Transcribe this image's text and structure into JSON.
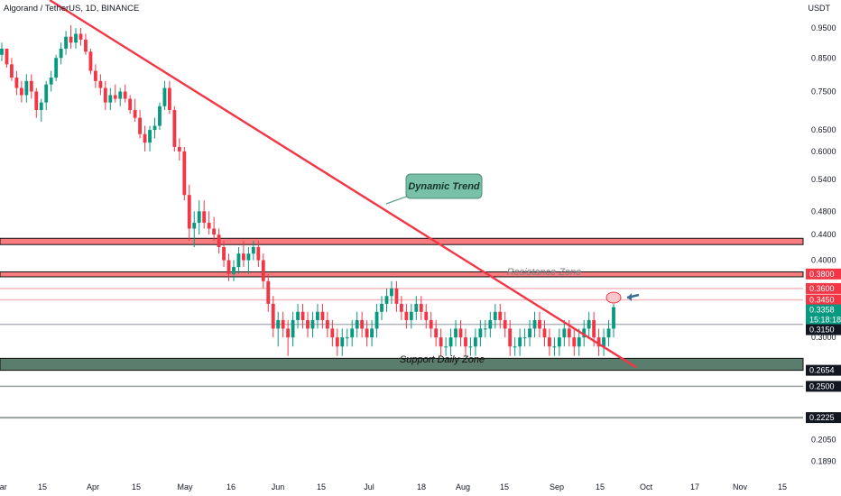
{
  "header": {
    "symbol_title": "Algorand / TetherUS, 1D, BINANCE",
    "unit": "USDT"
  },
  "chart_data": {
    "type": "candlestick",
    "title": "Algorand / TetherUS, 1D, BINANCE",
    "scale": "log",
    "y_axis_ticks": [
      0.95,
      0.85,
      0.75,
      0.65,
      0.6,
      0.54,
      0.48,
      0.44,
      0.4,
      0.3,
      0.2654,
      0.25,
      0.2225,
      0.205,
      0.189
    ],
    "y_tick_labels": [
      "0.9500",
      "0.8500",
      "0.7500",
      "0.6500",
      "0.6000",
      "0.5400",
      "0.4800",
      "0.4400",
      "0.4000",
      "0.3000",
      "0.2654",
      "0.2500",
      "0.2225",
      "0.2050",
      "0.1890"
    ],
    "x_axis_ticks": [
      "Mar",
      "15",
      "Apr",
      "15",
      "May",
      "16",
      "Jun",
      "15",
      "Jul",
      "18",
      "Aug",
      "15",
      "Sep",
      "15",
      "Oct",
      "17",
      "Nov",
      "15"
    ],
    "price_badges": [
      {
        "value": "0.3800",
        "color": "#f23645"
      },
      {
        "value": "0.3600",
        "color": "#f23645"
      },
      {
        "value": "0.3450",
        "color": "#f23645"
      },
      {
        "value": "0.3358",
        "color": "#089981"
      },
      {
        "value": "15:18:18",
        "color": "#089981"
      },
      {
        "value": "0.3150",
        "color": "#131722"
      },
      {
        "value": "0.2654",
        "color": "#131722"
      },
      {
        "value": "0.2500",
        "color": "#131722"
      },
      {
        "value": "0.2225",
        "color": "#131722"
      }
    ],
    "annotations": {
      "dynamic_trend": "Dynamic Trend",
      "resistance_zone": "Resistance Zone",
      "support_zone": "Support Daily Zone"
    },
    "zones": [
      {
        "name": "top-resistance",
        "from": 0.424,
        "to": 0.434,
        "color": "#f77c80"
      },
      {
        "name": "resistance-zone",
        "from": 0.376,
        "to": 0.383,
        "color": "#f77c80"
      },
      {
        "name": "support-daily-zone",
        "from": 0.2654,
        "to": 0.2775,
        "color": "#5b7d6e"
      }
    ],
    "horizontal_lines": [
      0.36,
      0.345,
      0.315,
      0.25,
      0.2225
    ],
    "trendline": {
      "start": {
        "x": "Mar 1",
        "y": 1.1
      },
      "end": {
        "x": "Sep 25",
        "y": 0.272
      }
    },
    "current_price": 0.3358,
    "ohlc": [
      [
        0.86,
        0.9,
        0.84,
        0.88
      ],
      [
        0.88,
        0.88,
        0.82,
        0.83
      ],
      [
        0.83,
        0.85,
        0.78,
        0.79
      ],
      [
        0.79,
        0.81,
        0.74,
        0.76
      ],
      [
        0.76,
        0.78,
        0.72,
        0.74
      ],
      [
        0.74,
        0.8,
        0.72,
        0.78
      ],
      [
        0.78,
        0.8,
        0.73,
        0.75
      ],
      [
        0.75,
        0.76,
        0.68,
        0.7
      ],
      [
        0.7,
        0.73,
        0.67,
        0.72
      ],
      [
        0.72,
        0.78,
        0.7,
        0.77
      ],
      [
        0.77,
        0.81,
        0.75,
        0.79
      ],
      [
        0.79,
        0.86,
        0.78,
        0.85
      ],
      [
        0.85,
        0.9,
        0.83,
        0.88
      ],
      [
        0.88,
        0.94,
        0.86,
        0.92
      ],
      [
        0.92,
        0.96,
        0.88,
        0.9
      ],
      [
        0.9,
        0.95,
        0.88,
        0.93
      ],
      [
        0.93,
        0.95,
        0.89,
        0.91
      ],
      [
        0.91,
        0.93,
        0.86,
        0.87
      ],
      [
        0.87,
        0.88,
        0.8,
        0.81
      ],
      [
        0.81,
        0.83,
        0.76,
        0.78
      ],
      [
        0.78,
        0.8,
        0.74,
        0.76
      ],
      [
        0.76,
        0.78,
        0.7,
        0.72
      ],
      [
        0.72,
        0.76,
        0.7,
        0.74
      ],
      [
        0.74,
        0.77,
        0.72,
        0.73
      ],
      [
        0.73,
        0.76,
        0.71,
        0.75
      ],
      [
        0.75,
        0.77,
        0.72,
        0.73
      ],
      [
        0.73,
        0.74,
        0.69,
        0.7
      ],
      [
        0.7,
        0.73,
        0.67,
        0.68
      ],
      [
        0.68,
        0.7,
        0.63,
        0.64
      ],
      [
        0.64,
        0.66,
        0.6,
        0.62
      ],
      [
        0.62,
        0.66,
        0.6,
        0.65
      ],
      [
        0.65,
        0.68,
        0.63,
        0.66
      ],
      [
        0.66,
        0.72,
        0.65,
        0.71
      ],
      [
        0.71,
        0.78,
        0.7,
        0.76
      ],
      [
        0.76,
        0.78,
        0.69,
        0.7
      ],
      [
        0.7,
        0.71,
        0.6,
        0.61
      ],
      [
        0.61,
        0.63,
        0.58,
        0.6
      ],
      [
        0.6,
        0.61,
        0.5,
        0.51
      ],
      [
        0.51,
        0.53,
        0.43,
        0.45
      ],
      [
        0.45,
        0.48,
        0.42,
        0.46
      ],
      [
        0.46,
        0.5,
        0.44,
        0.48
      ],
      [
        0.48,
        0.5,
        0.45,
        0.46
      ],
      [
        0.46,
        0.48,
        0.44,
        0.45
      ],
      [
        0.45,
        0.47,
        0.43,
        0.44
      ],
      [
        0.44,
        0.45,
        0.41,
        0.42
      ],
      [
        0.42,
        0.43,
        0.39,
        0.4
      ],
      [
        0.4,
        0.41,
        0.37,
        0.38
      ],
      [
        0.38,
        0.4,
        0.37,
        0.39
      ],
      [
        0.39,
        0.42,
        0.38,
        0.41
      ],
      [
        0.41,
        0.43,
        0.39,
        0.4
      ],
      [
        0.4,
        0.42,
        0.38,
        0.41
      ],
      [
        0.41,
        0.43,
        0.4,
        0.42
      ],
      [
        0.42,
        0.43,
        0.39,
        0.4
      ],
      [
        0.4,
        0.41,
        0.36,
        0.37
      ],
      [
        0.37,
        0.38,
        0.33,
        0.34
      ],
      [
        0.34,
        0.35,
        0.3,
        0.31
      ],
      [
        0.31,
        0.33,
        0.29,
        0.32
      ],
      [
        0.32,
        0.33,
        0.3,
        0.31
      ],
      [
        0.31,
        0.32,
        0.28,
        0.3
      ],
      [
        0.3,
        0.33,
        0.29,
        0.32
      ],
      [
        0.32,
        0.34,
        0.31,
        0.33
      ],
      [
        0.33,
        0.34,
        0.31,
        0.32
      ],
      [
        0.32,
        0.33,
        0.3,
        0.31
      ],
      [
        0.31,
        0.33,
        0.3,
        0.32
      ],
      [
        0.32,
        0.34,
        0.31,
        0.33
      ],
      [
        0.33,
        0.34,
        0.31,
        0.32
      ],
      [
        0.32,
        0.33,
        0.3,
        0.31
      ],
      [
        0.31,
        0.32,
        0.29,
        0.3
      ],
      [
        0.3,
        0.31,
        0.28,
        0.29
      ],
      [
        0.29,
        0.31,
        0.28,
        0.3
      ],
      [
        0.3,
        0.31,
        0.29,
        0.3
      ],
      [
        0.3,
        0.32,
        0.29,
        0.31
      ],
      [
        0.31,
        0.33,
        0.3,
        0.32
      ],
      [
        0.32,
        0.33,
        0.3,
        0.31
      ],
      [
        0.31,
        0.32,
        0.29,
        0.3
      ],
      [
        0.3,
        0.32,
        0.29,
        0.31
      ],
      [
        0.31,
        0.34,
        0.3,
        0.33
      ],
      [
        0.33,
        0.35,
        0.32,
        0.34
      ],
      [
        0.34,
        0.36,
        0.33,
        0.35
      ],
      [
        0.35,
        0.37,
        0.34,
        0.36
      ],
      [
        0.36,
        0.37,
        0.33,
        0.34
      ],
      [
        0.34,
        0.35,
        0.32,
        0.33
      ],
      [
        0.33,
        0.34,
        0.31,
        0.32
      ],
      [
        0.32,
        0.34,
        0.31,
        0.33
      ],
      [
        0.33,
        0.35,
        0.32,
        0.34
      ],
      [
        0.34,
        0.35,
        0.32,
        0.33
      ],
      [
        0.33,
        0.34,
        0.31,
        0.32
      ],
      [
        0.32,
        0.33,
        0.3,
        0.31
      ],
      [
        0.31,
        0.32,
        0.29,
        0.3
      ],
      [
        0.3,
        0.31,
        0.28,
        0.29
      ],
      [
        0.29,
        0.3,
        0.28,
        0.29
      ],
      [
        0.29,
        0.31,
        0.28,
        0.3
      ],
      [
        0.3,
        0.32,
        0.29,
        0.31
      ],
      [
        0.31,
        0.32,
        0.29,
        0.3
      ],
      [
        0.3,
        0.31,
        0.28,
        0.29
      ],
      [
        0.29,
        0.3,
        0.28,
        0.29
      ],
      [
        0.29,
        0.31,
        0.28,
        0.3
      ],
      [
        0.3,
        0.32,
        0.29,
        0.31
      ],
      [
        0.31,
        0.32,
        0.3,
        0.31
      ],
      [
        0.31,
        0.33,
        0.3,
        0.32
      ],
      [
        0.32,
        0.34,
        0.31,
        0.33
      ],
      [
        0.33,
        0.34,
        0.31,
        0.32
      ],
      [
        0.32,
        0.33,
        0.3,
        0.31
      ],
      [
        0.31,
        0.32,
        0.28,
        0.29
      ],
      [
        0.29,
        0.3,
        0.28,
        0.29
      ],
      [
        0.29,
        0.31,
        0.28,
        0.3
      ],
      [
        0.3,
        0.31,
        0.29,
        0.3
      ],
      [
        0.3,
        0.32,
        0.29,
        0.31
      ],
      [
        0.31,
        0.33,
        0.3,
        0.32
      ],
      [
        0.32,
        0.33,
        0.3,
        0.31
      ],
      [
        0.31,
        0.32,
        0.29,
        0.3
      ],
      [
        0.3,
        0.31,
        0.28,
        0.29
      ],
      [
        0.29,
        0.3,
        0.28,
        0.29
      ],
      [
        0.29,
        0.31,
        0.28,
        0.3
      ],
      [
        0.3,
        0.32,
        0.29,
        0.31
      ],
      [
        0.31,
        0.32,
        0.29,
        0.3
      ],
      [
        0.3,
        0.31,
        0.28,
        0.29
      ],
      [
        0.29,
        0.31,
        0.28,
        0.3
      ],
      [
        0.3,
        0.32,
        0.29,
        0.31
      ],
      [
        0.31,
        0.33,
        0.3,
        0.32
      ],
      [
        0.32,
        0.33,
        0.29,
        0.3
      ],
      [
        0.3,
        0.31,
        0.28,
        0.29
      ],
      [
        0.29,
        0.31,
        0.28,
        0.3
      ],
      [
        0.3,
        0.32,
        0.29,
        0.31
      ],
      [
        0.31,
        0.34,
        0.3,
        0.3358
      ]
    ]
  }
}
